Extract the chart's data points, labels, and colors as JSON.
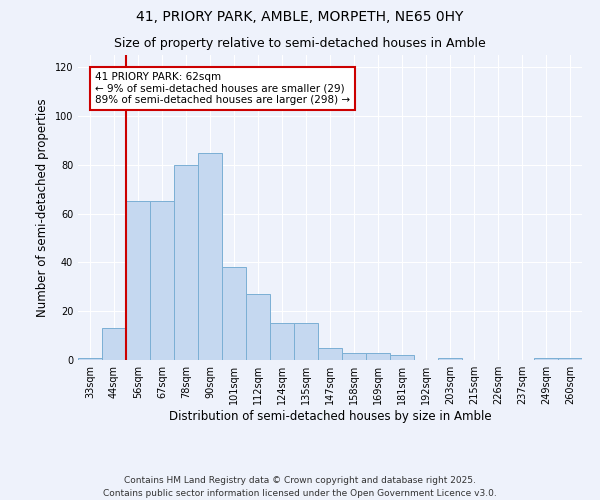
{
  "title": "41, PRIORY PARK, AMBLE, MORPETH, NE65 0HY",
  "subtitle": "Size of property relative to semi-detached houses in Amble",
  "xlabel": "Distribution of semi-detached houses by size in Amble",
  "ylabel": "Number of semi-detached properties",
  "categories": [
    "33sqm",
    "44sqm",
    "56sqm",
    "67sqm",
    "78sqm",
    "90sqm",
    "101sqm",
    "112sqm",
    "124sqm",
    "135sqm",
    "147sqm",
    "158sqm",
    "169sqm",
    "181sqm",
    "192sqm",
    "203sqm",
    "215sqm",
    "226sqm",
    "237sqm",
    "249sqm",
    "260sqm"
  ],
  "values": [
    1,
    13,
    65,
    65,
    80,
    85,
    38,
    27,
    15,
    15,
    5,
    3,
    3,
    2,
    0,
    1,
    0,
    0,
    0,
    1,
    1
  ],
  "bar_color": "#c5d8f0",
  "bar_edge_color": "#7bafd4",
  "property_label": "41 PRIORY PARK: 62sqm",
  "smaller_pct": 9,
  "smaller_count": 29,
  "larger_pct": 89,
  "larger_count": 298,
  "vline_color": "#cc0000",
  "annotation_box_color": "#cc0000",
  "ylim": [
    0,
    125
  ],
  "yticks": [
    0,
    20,
    40,
    60,
    80,
    100,
    120
  ],
  "background_color": "#eef2fb",
  "plot_background": "#eef2fb",
  "footer": "Contains HM Land Registry data © Crown copyright and database right 2025.\nContains public sector information licensed under the Open Government Licence v3.0.",
  "title_fontsize": 10,
  "subtitle_fontsize": 9,
  "axis_label_fontsize": 8.5,
  "tick_fontsize": 7,
  "footer_fontsize": 6.5,
  "annotation_fontsize": 7.5
}
